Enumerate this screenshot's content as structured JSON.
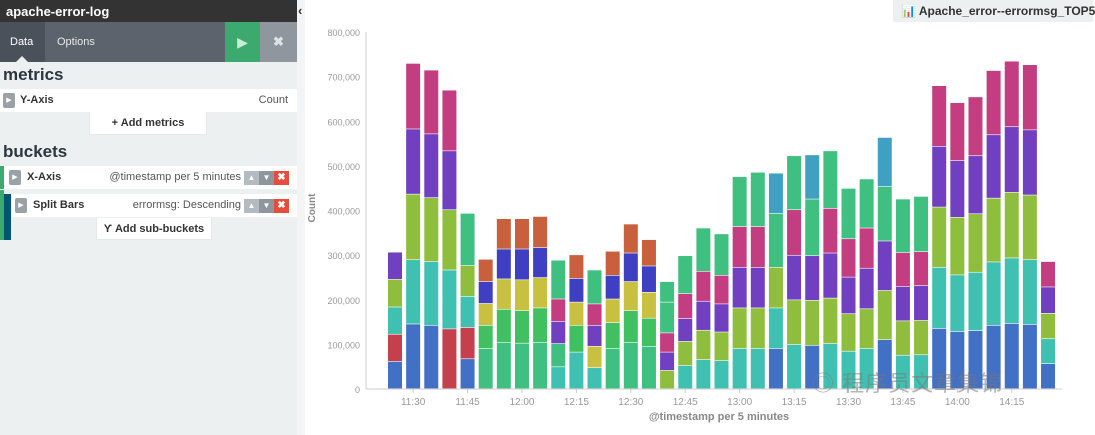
{
  "panel": {
    "title": "apache-error-log",
    "tabs": [
      "Data",
      "Options"
    ],
    "run_icon": "play-icon",
    "discard_icon": "close-icon"
  },
  "metrics": {
    "heading": "metrics",
    "y_axis": {
      "label": "Y-Axis",
      "value": "Count"
    },
    "add_label": "+ Add metrics"
  },
  "buckets": {
    "heading": "buckets",
    "x_axis": {
      "label": "X-Axis",
      "value": "@timestamp per 5 minutes",
      "accent": "#3caa6e"
    },
    "split": {
      "label": "Split Bars",
      "value": "errormsg: Descending",
      "accent": "#005571"
    },
    "add_label": "Add sub-buckets"
  },
  "viz_title": "Apache_error--errormsg_TOP5",
  "watermark": "程序员文章集锦",
  "chart_data": {
    "type": "bar",
    "stacked": true,
    "xlabel": "@timestamp per 5 minutes",
    "ylabel": "Count",
    "ylim": [
      0,
      800000
    ],
    "yticks": [
      "0",
      "100,000",
      "200,000",
      "300,000",
      "400,000",
      "500,000",
      "600,000",
      "700,000",
      "800,000"
    ],
    "xticks": [
      "11:30",
      "11:45",
      "12:00",
      "12:15",
      "12:30",
      "12:45",
      "13:00",
      "13:15",
      "13:30",
      "13:45",
      "14:00",
      "14:15"
    ],
    "palette": {
      "B": "#4170c4",
      "R": "#c3404c",
      "T": "#40c0b0",
      "G": "#8fbe3e",
      "P": "#7140c0",
      "M": "#c23e80",
      "Gr": "#40c080",
      "LG": "#41c062",
      "O": "#c8603e",
      "DB": "#3f3fc2",
      "Y": "#c8c040",
      "C": "#40a0c2"
    },
    "bars": [
      {
        "x": "11:25",
        "values": [
          61000,
          61000,
          61000,
          62000,
          61000
        ],
        "colors": [
          "B",
          "R",
          "T",
          "G",
          "P"
        ]
      },
      {
        "x": "11:30",
        "values": [
          145000,
          144000,
          147000,
          146000,
          147000
        ],
        "colors": [
          "B",
          "T",
          "G",
          "P",
          "M"
        ]
      },
      {
        "x": "11:35",
        "values": [
          142000,
          143000,
          143000,
          143000,
          143000
        ],
        "colors": [
          "B",
          "T",
          "G",
          "P",
          "M"
        ]
      },
      {
        "x": "11:40",
        "values": [
          134000,
          132000,
          135000,
          132000,
          136000
        ],
        "colors": [
          "R",
          "T",
          "G",
          "P",
          "M"
        ]
      },
      {
        "x": "11:45",
        "values": [
          67000,
          70000,
          70000,
          69000,
          117000
        ],
        "colors": [
          "B",
          "R",
          "T",
          "G",
          "Gr"
        ]
      },
      {
        "x": "11:50",
        "values": [
          90000,
          52000,
          49000,
          49000,
          50000
        ],
        "colors": [
          "Gr",
          "LG",
          "Y",
          "DB",
          "O"
        ]
      },
      {
        "x": "11:55",
        "values": [
          104000,
          74000,
          68000,
          67000,
          68000
        ],
        "colors": [
          "Gr",
          "LG",
          "Y",
          "DB",
          "O"
        ]
      },
      {
        "x": "12:00",
        "values": [
          102000,
          73000,
          69000,
          69000,
          68000
        ],
        "colors": [
          "Gr",
          "LG",
          "Y",
          "DB",
          "O"
        ]
      },
      {
        "x": "12:05",
        "values": [
          104000,
          77000,
          68000,
          67000,
          70000
        ],
        "colors": [
          "Gr",
          "LG",
          "Y",
          "DB",
          "O"
        ]
      },
      {
        "x": "12:10",
        "values": [
          49000,
          52000,
          50000,
          50000,
          87000
        ],
        "colors": [
          "T",
          "Gr",
          "P",
          "M",
          "Gr"
        ]
      },
      {
        "x": "12:15",
        "values": [
          82000,
          60000,
          52000,
          53000,
          53000
        ],
        "colors": [
          "T",
          "LG",
          "Y",
          "DB",
          "O"
        ]
      },
      {
        "x": "12:20",
        "values": [
          47000,
          48000,
          47000,
          48000,
          76000
        ],
        "colors": [
          "T",
          "Y",
          "P",
          "M",
          "Gr"
        ]
      },
      {
        "x": "12:25",
        "values": [
          90000,
          58000,
          53000,
          53000,
          54000
        ],
        "colors": [
          "Gr",
          "LG",
          "Y",
          "DB",
          "O"
        ]
      },
      {
        "x": "12:30",
        "values": [
          104000,
          71000,
          65000,
          64000,
          65000
        ],
        "colors": [
          "Gr",
          "LG",
          "Y",
          "DB",
          "O"
        ]
      },
      {
        "x": "12:35",
        "values": [
          95000,
          63000,
          58000,
          59000,
          59000
        ],
        "colors": [
          "Gr",
          "LG",
          "Y",
          "DB",
          "O"
        ]
      },
      {
        "x": "12:40",
        "values": [
          41000,
          41000,
          43000,
          69000,
          46000
        ],
        "colors": [
          "G",
          "P",
          "M",
          "Gr",
          "Gr"
        ]
      },
      {
        "x": "12:45",
        "values": [
          52000,
          54000,
          51000,
          56000,
          85000
        ],
        "colors": [
          "T",
          "G",
          "P",
          "M",
          "Gr"
        ]
      },
      {
        "x": "12:50",
        "values": [
          65000,
          66000,
          65000,
          67000,
          97000
        ],
        "colors": [
          "T",
          "G",
          "P",
          "M",
          "Gr"
        ]
      },
      {
        "x": "12:55",
        "values": [
          63000,
          64000,
          63000,
          64000,
          93000
        ],
        "colors": [
          "T",
          "G",
          "P",
          "M",
          "Gr"
        ]
      },
      {
        "x": "13:00",
        "values": [
          90000,
          91000,
          91000,
          91000,
          112000
        ],
        "colors": [
          "T",
          "G",
          "P",
          "M",
          "Gr"
        ]
      },
      {
        "x": "13:05",
        "values": [
          90000,
          91000,
          91000,
          91000,
          122000
        ],
        "colors": [
          "T",
          "G",
          "P",
          "M",
          "Gr"
        ]
      },
      {
        "x": "13:10",
        "values": [
          90000,
          91000,
          91000,
          121000,
          90000
        ],
        "colors": [
          "B",
          "T",
          "G",
          "Gr",
          "C"
        ]
      },
      {
        "x": "13:15",
        "values": [
          99000,
          100000,
          100000,
          102000,
          121000
        ],
        "colors": [
          "T",
          "G",
          "P",
          "M",
          "Gr"
        ]
      },
      {
        "x": "13:20",
        "values": [
          97000,
          101000,
          100000,
          127000,
          99000
        ],
        "colors": [
          "B",
          "G",
          "P",
          "Gr",
          "C"
        ]
      },
      {
        "x": "13:25",
        "values": [
          101000,
          102000,
          101000,
          100000,
          129000
        ],
        "colors": [
          "T",
          "G",
          "P",
          "M",
          "Gr"
        ]
      },
      {
        "x": "13:30",
        "values": [
          84000,
          84000,
          82000,
          86000,
          113000
        ],
        "colors": [
          "T",
          "G",
          "P",
          "M",
          "Gr"
        ]
      },
      {
        "x": "13:35",
        "values": [
          90000,
          89000,
          91000,
          90000,
          110000
        ],
        "colors": [
          "T",
          "G",
          "P",
          "M",
          "Gr"
        ]
      },
      {
        "x": "13:40",
        "values": [
          110000,
          110000,
          111000,
          122000,
          110000
        ],
        "colors": [
          "B",
          "G",
          "P",
          "Gr",
          "C"
        ]
      },
      {
        "x": "13:45",
        "values": [
          75000,
          77000,
          77000,
          76000,
          120000
        ],
        "colors": [
          "T",
          "G",
          "P",
          "M",
          "Gr"
        ]
      },
      {
        "x": "13:50",
        "values": [
          76000,
          77000,
          78000,
          76000,
          124000
        ],
        "colors": [
          "T",
          "G",
          "P",
          "M",
          "Gr"
        ]
      },
      {
        "x": "13:55",
        "values": [
          135000,
          137000,
          135000,
          136000,
          136000
        ],
        "colors": [
          "B",
          "T",
          "G",
          "P",
          "M"
        ]
      },
      {
        "x": "14:00",
        "values": [
          128000,
          127000,
          129000,
          127000,
          130000
        ],
        "colors": [
          "B",
          "T",
          "G",
          "P",
          "M"
        ]
      },
      {
        "x": "14:05",
        "values": [
          130000,
          131000,
          131000,
          130000,
          132000
        ],
        "colors": [
          "B",
          "T",
          "G",
          "P",
          "M"
        ]
      },
      {
        "x": "14:10",
        "values": [
          142000,
          142000,
          143000,
          142000,
          144000
        ],
        "colors": [
          "B",
          "T",
          "G",
          "P",
          "M"
        ]
      },
      {
        "x": "14:15",
        "values": [
          146000,
          147000,
          147000,
          147000,
          147000
        ],
        "colors": [
          "B",
          "T",
          "G",
          "P",
          "M"
        ]
      },
      {
        "x": "14:20",
        "values": [
          144000,
          145000,
          145000,
          146000,
          146000
        ],
        "colors": [
          "B",
          "T",
          "G",
          "P",
          "M"
        ]
      },
      {
        "x": "14:25",
        "values": [
          56000,
          56000,
          57000,
          59000,
          57000
        ],
        "colors": [
          "B",
          "T",
          "G",
          "P",
          "M"
        ]
      }
    ]
  }
}
